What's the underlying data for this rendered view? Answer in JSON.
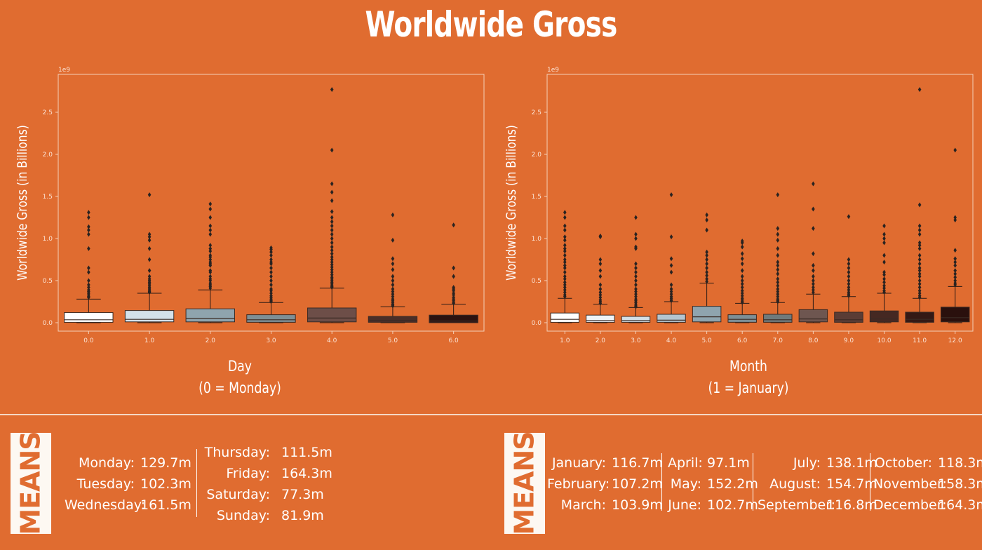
{
  "title": "Worldwide Gross",
  "colors": {
    "background": "#e06c30",
    "day_boxes": [
      "#ffffff",
      "#d4e1ea",
      "#8fa4ae",
      "#7e8f95",
      "#6d4e48",
      "#4a2e28",
      "#2c1210"
    ],
    "month_boxes": [
      "#ffffff",
      "#eef3f7",
      "#d2dfe7",
      "#b3c5cf",
      "#8fa4ae",
      "#7d8f96",
      "#6f7a7c",
      "#6e5650",
      "#5a3c35",
      "#452822",
      "#341915",
      "#2a100d"
    ]
  },
  "chart_data": [
    {
      "type": "box",
      "scale_label": "1e9",
      "xlabel": "Day\n(0 = Monday)",
      "ylabel": "Worldwide Gross (in Billions)",
      "ylim": [
        -0.1,
        2.95
      ],
      "yticks": [
        "0.0",
        "0.5",
        "1.0",
        "1.5",
        "2.0",
        "2.5"
      ],
      "categories": [
        "0.0",
        "1.0",
        "2.0",
        "3.0",
        "4.0",
        "5.0",
        "6.0"
      ],
      "boxes": [
        {
          "q1": 0.005,
          "median": 0.035,
          "q3": 0.12,
          "whisker_low": 0.0,
          "whisker_high": 0.28,
          "outliers": [
            1.31,
            1.25,
            1.14,
            1.1,
            1.05,
            0.88,
            0.65,
            0.6,
            0.5,
            0.45,
            0.42,
            0.39,
            0.37,
            0.35,
            0.33,
            0.31,
            0.3
          ]
        },
        {
          "q1": 0.01,
          "median": 0.04,
          "q3": 0.145,
          "whisker_low": 0.0,
          "whisker_high": 0.35,
          "outliers": [
            1.52,
            1.05,
            1.02,
            0.98,
            0.88,
            0.75,
            0.62,
            0.55,
            0.52,
            0.5,
            0.48,
            0.46,
            0.44,
            0.42,
            0.4,
            0.38,
            0.37,
            0.36
          ]
        },
        {
          "q1": 0.01,
          "median": 0.05,
          "q3": 0.165,
          "whisker_low": 0.0,
          "whisker_high": 0.39,
          "outliers": [
            1.41,
            1.35,
            1.25,
            1.15,
            1.1,
            1.05,
            0.92,
            0.88,
            0.85,
            0.8,
            0.78,
            0.75,
            0.72,
            0.7,
            0.68,
            0.62,
            0.6,
            0.55,
            0.52,
            0.5,
            0.47,
            0.45,
            0.43,
            0.41
          ]
        },
        {
          "q1": 0.005,
          "median": 0.035,
          "q3": 0.095,
          "whisker_low": 0.0,
          "whisker_high": 0.24,
          "outliers": [
            0.89,
            0.87,
            0.84,
            0.8,
            0.75,
            0.72,
            0.7,
            0.65,
            0.6,
            0.55,
            0.5,
            0.45,
            0.4,
            0.38,
            0.35,
            0.32,
            0.3,
            0.28,
            0.26,
            0.25
          ]
        },
        {
          "q1": 0.01,
          "median": 0.055,
          "q3": 0.175,
          "whisker_low": 0.0,
          "whisker_high": 0.41,
          "outliers": [
            2.77,
            2.05,
            1.65,
            1.55,
            1.45,
            1.32,
            1.25,
            1.2,
            1.15,
            1.1,
            1.05,
            1.0,
            0.95,
            0.9,
            0.86,
            0.82,
            0.78,
            0.75,
            0.72,
            0.69,
            0.66,
            0.63,
            0.6,
            0.57,
            0.54,
            0.52,
            0.5,
            0.48,
            0.46,
            0.44,
            0.43,
            0.42
          ]
        },
        {
          "q1": 0.005,
          "median": 0.025,
          "q3": 0.075,
          "whisker_low": 0.0,
          "whisker_high": 0.19,
          "outliers": [
            1.28,
            0.98,
            0.76,
            0.7,
            0.63,
            0.55,
            0.5,
            0.45,
            0.4,
            0.37,
            0.34,
            0.31,
            0.28,
            0.26,
            0.24,
            0.22,
            0.21,
            0.2
          ]
        },
        {
          "q1": 0.0,
          "median": 0.02,
          "q3": 0.09,
          "whisker_low": 0.0,
          "whisker_high": 0.22,
          "outliers": [
            1.16,
            0.65,
            0.55,
            0.42,
            0.4,
            0.38,
            0.35,
            0.33,
            0.3,
            0.28,
            0.26,
            0.24,
            0.23
          ]
        }
      ]
    },
    {
      "type": "box",
      "scale_label": "1e9",
      "xlabel": "Month\n(1 = January)",
      "ylabel": "Worldwide Gross (in Billions)",
      "ylim": [
        -0.1,
        2.95
      ],
      "yticks": [
        "0.0",
        "0.5",
        "1.0",
        "1.5",
        "2.0",
        "2.5"
      ],
      "categories": [
        "1.0",
        "2.0",
        "3.0",
        "4.0",
        "5.0",
        "6.0",
        "7.0",
        "8.0",
        "9.0",
        "10.0",
        "11.0",
        "12.0"
      ],
      "boxes": [
        {
          "q1": 0.005,
          "median": 0.04,
          "q3": 0.115,
          "whisker_low": 0.0,
          "whisker_high": 0.29,
          "outliers": [
            1.31,
            1.25,
            1.15,
            1.1,
            1.02,
            0.98,
            0.92,
            0.88,
            0.85,
            0.8,
            0.75,
            0.72,
            0.68,
            0.65,
            0.6,
            0.55,
            0.52,
            0.48,
            0.45,
            0.42,
            0.39,
            0.36,
            0.33,
            0.31
          ]
        },
        {
          "q1": 0.005,
          "median": 0.025,
          "q3": 0.09,
          "whisker_low": 0.0,
          "whisker_high": 0.22,
          "outliers": [
            1.03,
            1.02,
            0.75,
            0.7,
            0.62,
            0.55,
            0.45,
            0.4,
            0.36,
            0.33,
            0.3,
            0.27,
            0.25,
            0.23
          ]
        },
        {
          "q1": 0.005,
          "median": 0.025,
          "q3": 0.075,
          "whisker_low": 0.0,
          "whisker_high": 0.18,
          "outliers": [
            1.25,
            1.05,
            1.0,
            0.9,
            0.88,
            0.7,
            0.65,
            0.6,
            0.55,
            0.5,
            0.45,
            0.4,
            0.37,
            0.34,
            0.31,
            0.28,
            0.26,
            0.24,
            0.22,
            0.2,
            0.19
          ]
        },
        {
          "q1": 0.005,
          "median": 0.03,
          "q3": 0.1,
          "whisker_low": 0.0,
          "whisker_high": 0.25,
          "outliers": [
            1.52,
            1.02,
            0.76,
            0.68,
            0.6,
            0.45,
            0.4,
            0.37,
            0.34,
            0.31,
            0.29,
            0.27,
            0.26
          ]
        },
        {
          "q1": 0.01,
          "median": 0.07,
          "q3": 0.195,
          "whisker_low": 0.0,
          "whisker_high": 0.47,
          "outliers": [
            1.28,
            1.22,
            1.1,
            0.84,
            0.8,
            0.75,
            0.7,
            0.65,
            0.6,
            0.56,
            0.52,
            0.49
          ]
        },
        {
          "q1": 0.005,
          "median": 0.04,
          "q3": 0.095,
          "whisker_low": 0.0,
          "whisker_high": 0.23,
          "outliers": [
            0.97,
            0.95,
            0.9,
            0.82,
            0.76,
            0.7,
            0.62,
            0.55,
            0.5,
            0.46,
            0.42,
            0.38,
            0.35,
            0.32,
            0.29,
            0.27,
            0.25,
            0.24
          ]
        },
        {
          "q1": 0.005,
          "median": 0.035,
          "q3": 0.1,
          "whisker_low": 0.0,
          "whisker_high": 0.24,
          "outliers": [
            1.52,
            1.12,
            1.05,
            0.98,
            0.88,
            0.8,
            0.72,
            0.68,
            0.63,
            0.58,
            0.52,
            0.48,
            0.44,
            0.4,
            0.37,
            0.34,
            0.31,
            0.28,
            0.26,
            0.25
          ]
        },
        {
          "q1": 0.01,
          "median": 0.045,
          "q3": 0.155,
          "whisker_low": 0.0,
          "whisker_high": 0.34,
          "outliers": [
            1.65,
            1.35,
            1.12,
            0.82,
            0.68,
            0.62,
            0.55,
            0.5,
            0.46,
            0.42,
            0.39,
            0.36
          ]
        },
        {
          "q1": 0.005,
          "median": 0.035,
          "q3": 0.125,
          "whisker_low": 0.0,
          "whisker_high": 0.31,
          "outliers": [
            1.26,
            0.75,
            0.7,
            0.65,
            0.6,
            0.55,
            0.5,
            0.46,
            0.42,
            0.39,
            0.36,
            0.34,
            0.32
          ]
        },
        {
          "q1": 0.01,
          "median": 0.045,
          "q3": 0.14,
          "whisker_low": 0.0,
          "whisker_high": 0.35,
          "outliers": [
            1.15,
            1.05,
            1.0,
            0.95,
            0.8,
            0.72,
            0.6,
            0.57,
            0.52,
            0.48,
            0.44,
            0.41,
            0.38,
            0.36
          ]
        },
        {
          "q1": 0.005,
          "median": 0.04,
          "q3": 0.125,
          "whisker_low": 0.0,
          "whisker_high": 0.29,
          "outliers": [
            2.77,
            1.4,
            1.15,
            1.1,
            1.05,
            0.95,
            0.92,
            0.88,
            0.8,
            0.75,
            0.7,
            0.65,
            0.62,
            0.58,
            0.55,
            0.5,
            0.46,
            0.42,
            0.38,
            0.35,
            0.32,
            0.3
          ]
        },
        {
          "q1": 0.01,
          "median": 0.06,
          "q3": 0.185,
          "whisker_low": 0.0,
          "whisker_high": 0.43,
          "outliers": [
            2.05,
            1.25,
            1.22,
            0.86,
            0.76,
            0.72,
            0.68,
            0.62,
            0.58,
            0.54,
            0.5,
            0.47,
            0.45
          ]
        }
      ]
    }
  ],
  "means_label": "MEANS",
  "day_means": [
    [
      {
        "label": "Monday:",
        "value": "129.7m"
      },
      {
        "label": "Tuesday:",
        "value": "102.3m"
      },
      {
        "label": "Wednesday:",
        "value": "161.5m"
      }
    ],
    [
      {
        "label": "Thursday:",
        "value": "111.5m"
      },
      {
        "label": "Friday:",
        "value": "164.3m"
      },
      {
        "label": "Saturday:",
        "value": "77.3m"
      },
      {
        "label": "Sunday:",
        "value": "81.9m"
      }
    ]
  ],
  "month_means": [
    [
      {
        "label": "January:",
        "value": "116.7m"
      },
      {
        "label": "February:",
        "value": "107.2m"
      },
      {
        "label": "March:",
        "value": "103.9m"
      }
    ],
    [
      {
        "label": "April:",
        "value": "97.1m"
      },
      {
        "label": "May:",
        "value": "152.2m"
      },
      {
        "label": "June:",
        "value": "102.7m"
      }
    ],
    [
      {
        "label": "July:",
        "value": "138.1m"
      },
      {
        "label": "August:",
        "value": "154.7m"
      },
      {
        "label": "September:",
        "value": "116.8m"
      }
    ],
    [
      {
        "label": "October:",
        "value": "118.3m"
      },
      {
        "label": "November:",
        "value": "158.3m"
      },
      {
        "label": "December:",
        "value": "164.3m"
      }
    ]
  ]
}
